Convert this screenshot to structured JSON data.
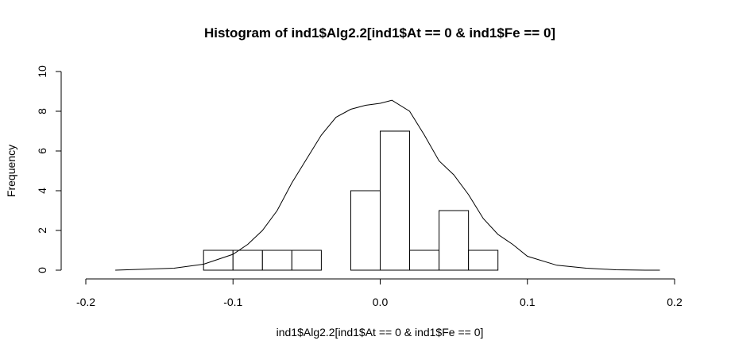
{
  "chart_data": {
    "type": "bar",
    "title": "Histogram of ind1$Alg2.2[ind1$At == 0 & ind1$Fe == 0]",
    "xlabel": "ind1$Alg2.2[ind1$At == 0 & ind1$Fe == 0]",
    "ylabel": "Frequency",
    "xlim": [
      -0.2,
      0.2
    ],
    "ylim": [
      0,
      10
    ],
    "x_ticks": [
      -0.2,
      -0.1,
      0.0,
      0.1,
      0.2
    ],
    "x_tick_labels": [
      "-0.2",
      "-0.1",
      "0.0",
      "0.1",
      "0.2"
    ],
    "y_ticks": [
      0,
      2,
      4,
      6,
      8,
      10
    ],
    "y_tick_labels": [
      "0",
      "2",
      "4",
      "6",
      "8",
      "10"
    ],
    "grid": false,
    "bins": [
      {
        "x0": -0.12,
        "x1": -0.1,
        "count": 1
      },
      {
        "x0": -0.1,
        "x1": -0.08,
        "count": 1
      },
      {
        "x0": -0.08,
        "x1": -0.06,
        "count": 1
      },
      {
        "x0": -0.06,
        "x1": -0.04,
        "count": 1
      },
      {
        "x0": -0.02,
        "x1": 0.0,
        "count": 4
      },
      {
        "x0": 0.0,
        "x1": 0.02,
        "count": 7
      },
      {
        "x0": 0.02,
        "x1": 0.04,
        "count": 1
      },
      {
        "x0": 0.04,
        "x1": 0.06,
        "count": 3
      },
      {
        "x0": 0.06,
        "x1": 0.08,
        "count": 1
      }
    ],
    "density_curve": {
      "x": [
        -0.18,
        -0.16,
        -0.14,
        -0.12,
        -0.1,
        -0.09,
        -0.08,
        -0.07,
        -0.06,
        -0.05,
        -0.04,
        -0.03,
        -0.02,
        -0.01,
        0.0,
        0.008,
        0.02,
        0.03,
        0.04,
        0.05,
        0.06,
        0.07,
        0.08,
        0.09,
        0.1,
        0.12,
        0.14,
        0.16,
        0.18,
        0.19
      ],
      "y": [
        0.0,
        0.05,
        0.1,
        0.3,
        0.8,
        1.3,
        2.0,
        3.0,
        4.4,
        5.6,
        6.8,
        7.7,
        8.1,
        8.3,
        8.4,
        8.55,
        8.0,
        6.8,
        5.5,
        4.8,
        3.8,
        2.6,
        1.8,
        1.3,
        0.7,
        0.25,
        0.1,
        0.02,
        0.0,
        0.0
      ]
    }
  }
}
